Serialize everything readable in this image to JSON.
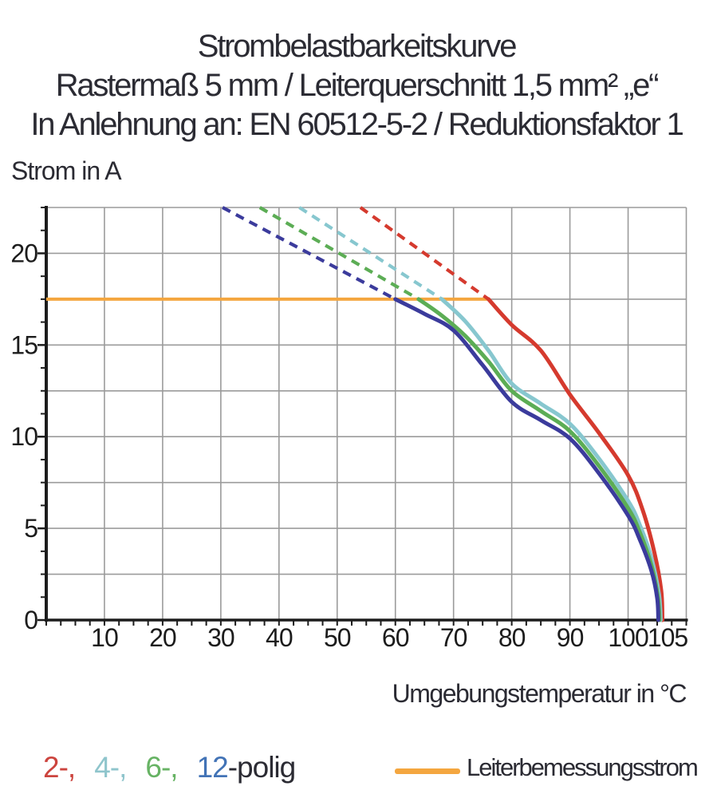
{
  "title": {
    "line1": "Strombelastbarkeitskurve",
    "line2": "Rastermaß 5 mm / Leiterquerschnitt 1,5 mm² „e“",
    "line3": "In Anlehnung an: EN 60512-5-2 / Reduktionsfaktor 1"
  },
  "chart_data": {
    "type": "line",
    "ylabel": "Strom in A",
    "xlabel": "Umgebungstemperatur in °C",
    "xlim": [
      0,
      110
    ],
    "ylim": [
      0,
      22.5
    ],
    "grid": true,
    "grid_color": "#9b9b9b",
    "axis_color": "#1c1c1c",
    "x_gridline_step": 10,
    "y_gridline_step": 2.5,
    "x_minor_tick_step": 2.5,
    "y_minor_tick_step": 1.25,
    "x_tick_labels": [
      {
        "value": 10
      },
      {
        "value": 20
      },
      {
        "value": 30
      },
      {
        "value": 40
      },
      {
        "value": 50
      },
      {
        "value": 60
      },
      {
        "value": 70
      },
      {
        "value": 80
      },
      {
        "value": 90
      },
      {
        "value": 100
      },
      {
        "value": 105,
        "label_dx": 13
      }
    ],
    "y_tick_labels": [
      0,
      5,
      10,
      15,
      20
    ],
    "rated_current": {
      "label": "Leiterbemessungsstrom",
      "value": 17.5,
      "x_start": 0,
      "x_end": 76,
      "color": "#f4a63f"
    },
    "series": [
      {
        "name": "2-polig",
        "color": "#d53a2e",
        "dashed": [
          [
            54,
            22.5
          ],
          [
            76,
            17.5
          ]
        ],
        "solid": [
          [
            76,
            17.5
          ],
          [
            80,
            16.1
          ],
          [
            85,
            14.7
          ],
          [
            90,
            12.3
          ],
          [
            95,
            10.2
          ],
          [
            100,
            7.9
          ],
          [
            102.5,
            6.0
          ],
          [
            104.5,
            3.7
          ],
          [
            105.7,
            1.6
          ],
          [
            105.9,
            0
          ]
        ]
      },
      {
        "name": "4-polig",
        "color": "#87c7cf",
        "dashed": [
          [
            43.5,
            22.5
          ],
          [
            68,
            17.5
          ]
        ],
        "solid": [
          [
            68,
            17.5
          ],
          [
            72,
            16.3
          ],
          [
            76,
            14.7
          ],
          [
            80,
            12.9
          ],
          [
            85,
            11.8
          ],
          [
            90,
            10.7
          ],
          [
            95,
            8.8
          ],
          [
            100,
            6.5
          ],
          [
            102,
            5.2
          ],
          [
            104,
            3.4
          ],
          [
            105.3,
            1.4
          ],
          [
            105.6,
            0
          ]
        ]
      },
      {
        "name": "6-polig",
        "color": "#5cad55",
        "dashed": [
          [
            36.7,
            22.5
          ],
          [
            64,
            17.5
          ]
        ],
        "solid": [
          [
            64,
            17.5
          ],
          [
            68,
            16.6
          ],
          [
            72,
            15.5
          ],
          [
            76,
            14.1
          ],
          [
            80,
            12.5
          ],
          [
            85,
            11.4
          ],
          [
            90,
            10.3
          ],
          [
            95,
            8.4
          ],
          [
            100,
            6.1
          ],
          [
            102,
            4.8
          ],
          [
            104,
            3.0
          ],
          [
            105.1,
            1.3
          ],
          [
            105.4,
            0
          ]
        ]
      },
      {
        "name": "12-polig",
        "color": "#3b3b9c",
        "dashed": [
          [
            30.3,
            22.5
          ],
          [
            60,
            17.5
          ]
        ],
        "solid": [
          [
            60,
            17.5
          ],
          [
            65,
            16.7
          ],
          [
            70,
            15.8
          ],
          [
            75,
            13.9
          ],
          [
            80,
            11.9
          ],
          [
            85,
            10.9
          ],
          [
            90,
            9.9
          ],
          [
            95,
            8.0
          ],
          [
            100,
            5.7
          ],
          [
            102,
            4.4
          ],
          [
            104,
            2.7
          ],
          [
            105,
            1.2
          ],
          [
            105.2,
            0
          ]
        ]
      }
    ]
  },
  "legend": {
    "pole_items": [
      {
        "label": "2-,",
        "color": "#cc443e"
      },
      {
        "label": "4-,",
        "color": "#8fc5cc"
      },
      {
        "label": "6-,",
        "color": "#67b364"
      },
      {
        "label": "12",
        "color": "#4273b6"
      }
    ],
    "suffix": "-polig",
    "suffix_color": "#2b2b33"
  }
}
